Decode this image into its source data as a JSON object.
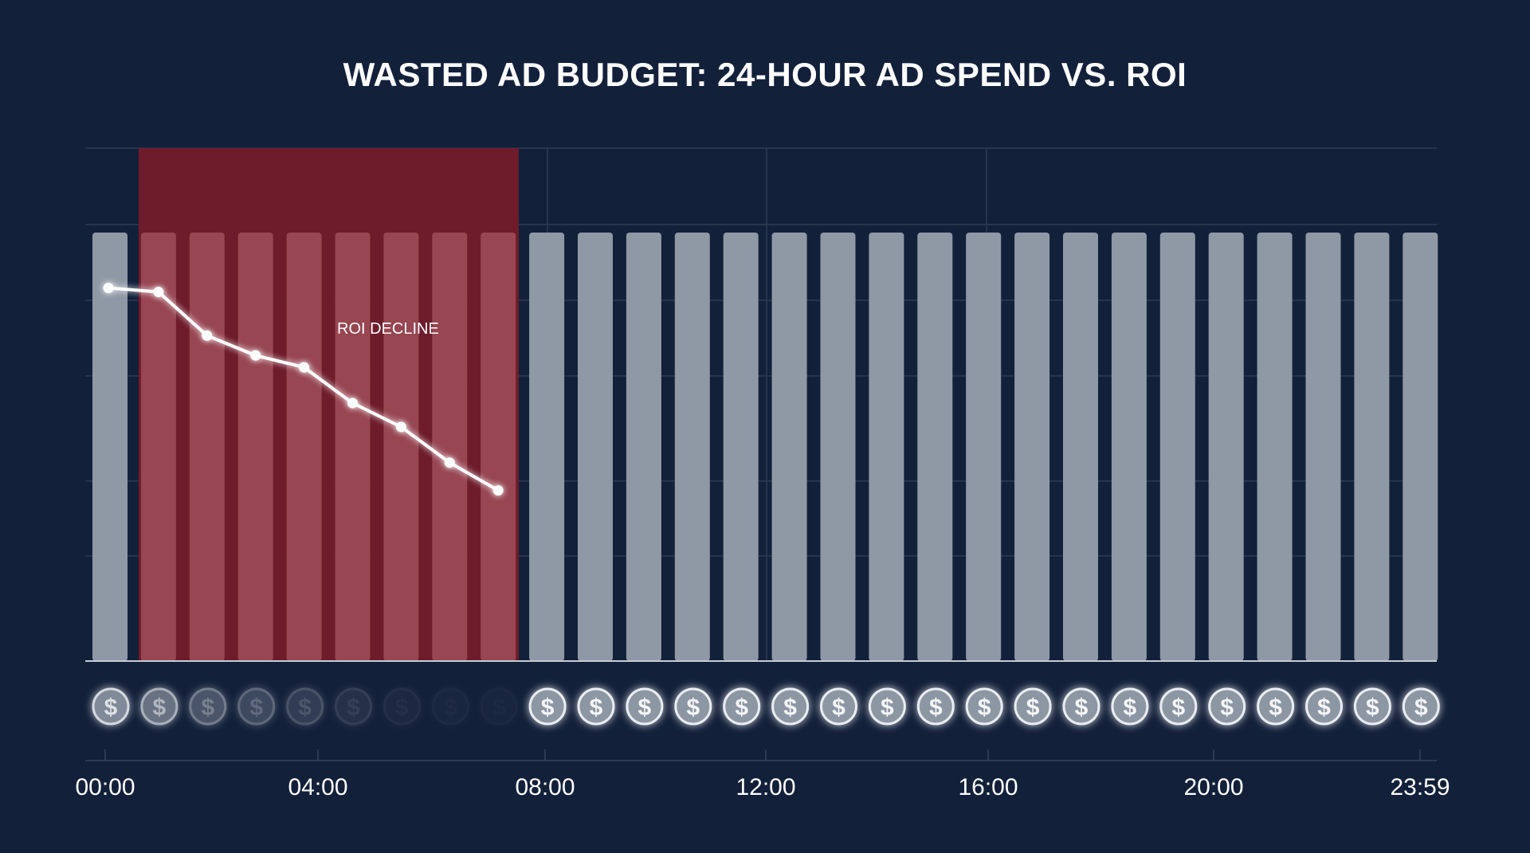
{
  "chart_data": {
    "type": "bar",
    "title": "WASTED AD BUDGET: 24-HOUR AD SPEND VS. ROI",
    "xlabel": "",
    "ylabel": "",
    "grid": true,
    "x_tick_labels": [
      "00:00",
      "04:00",
      "08:00",
      "12:00",
      "16:00",
      "20:00",
      "23:59"
    ],
    "x_tick_hours": [
      0,
      4,
      8,
      12,
      16,
      20,
      24
    ],
    "hours_range": [
      0,
      24
    ],
    "bar_count": 28,
    "bar_values": [
      1,
      1,
      1,
      1,
      1,
      1,
      1,
      1,
      1,
      1,
      1,
      1,
      1,
      1,
      1,
      1,
      1,
      1,
      1,
      1,
      1,
      1,
      1,
      1,
      1,
      1,
      1,
      1
    ],
    "ylim": [
      0,
      1.2
    ],
    "wasted_window_hours": [
      0.6,
      7.5
    ],
    "wasted_annotation": "ROI DECLINE",
    "roi_series": {
      "bar_index": [
        0,
        1,
        2,
        3,
        4,
        5,
        6,
        7,
        8
      ],
      "values": [
        0.94,
        0.93,
        0.82,
        0.77,
        0.74,
        0.65,
        0.59,
        0.5,
        0.43
      ]
    },
    "coin_symbol": "$",
    "coin_opacity": [
      0.9,
      0.7,
      0.45,
      0.35,
      0.25,
      0.15,
      0.07,
      0.05,
      0.04,
      1,
      1,
      1,
      1,
      1,
      1,
      1,
      1,
      1,
      1,
      1,
      1,
      1,
      1,
      1,
      1,
      1,
      1,
      1
    ],
    "colors": {
      "background": "#13203a",
      "bar": "#8f99a6",
      "wasted_zone": "#731b2a",
      "wasted_bar": "#a55560",
      "roi_line": "#ffffff",
      "grid": "#2c3a55",
      "text": "#ffffff"
    }
  }
}
